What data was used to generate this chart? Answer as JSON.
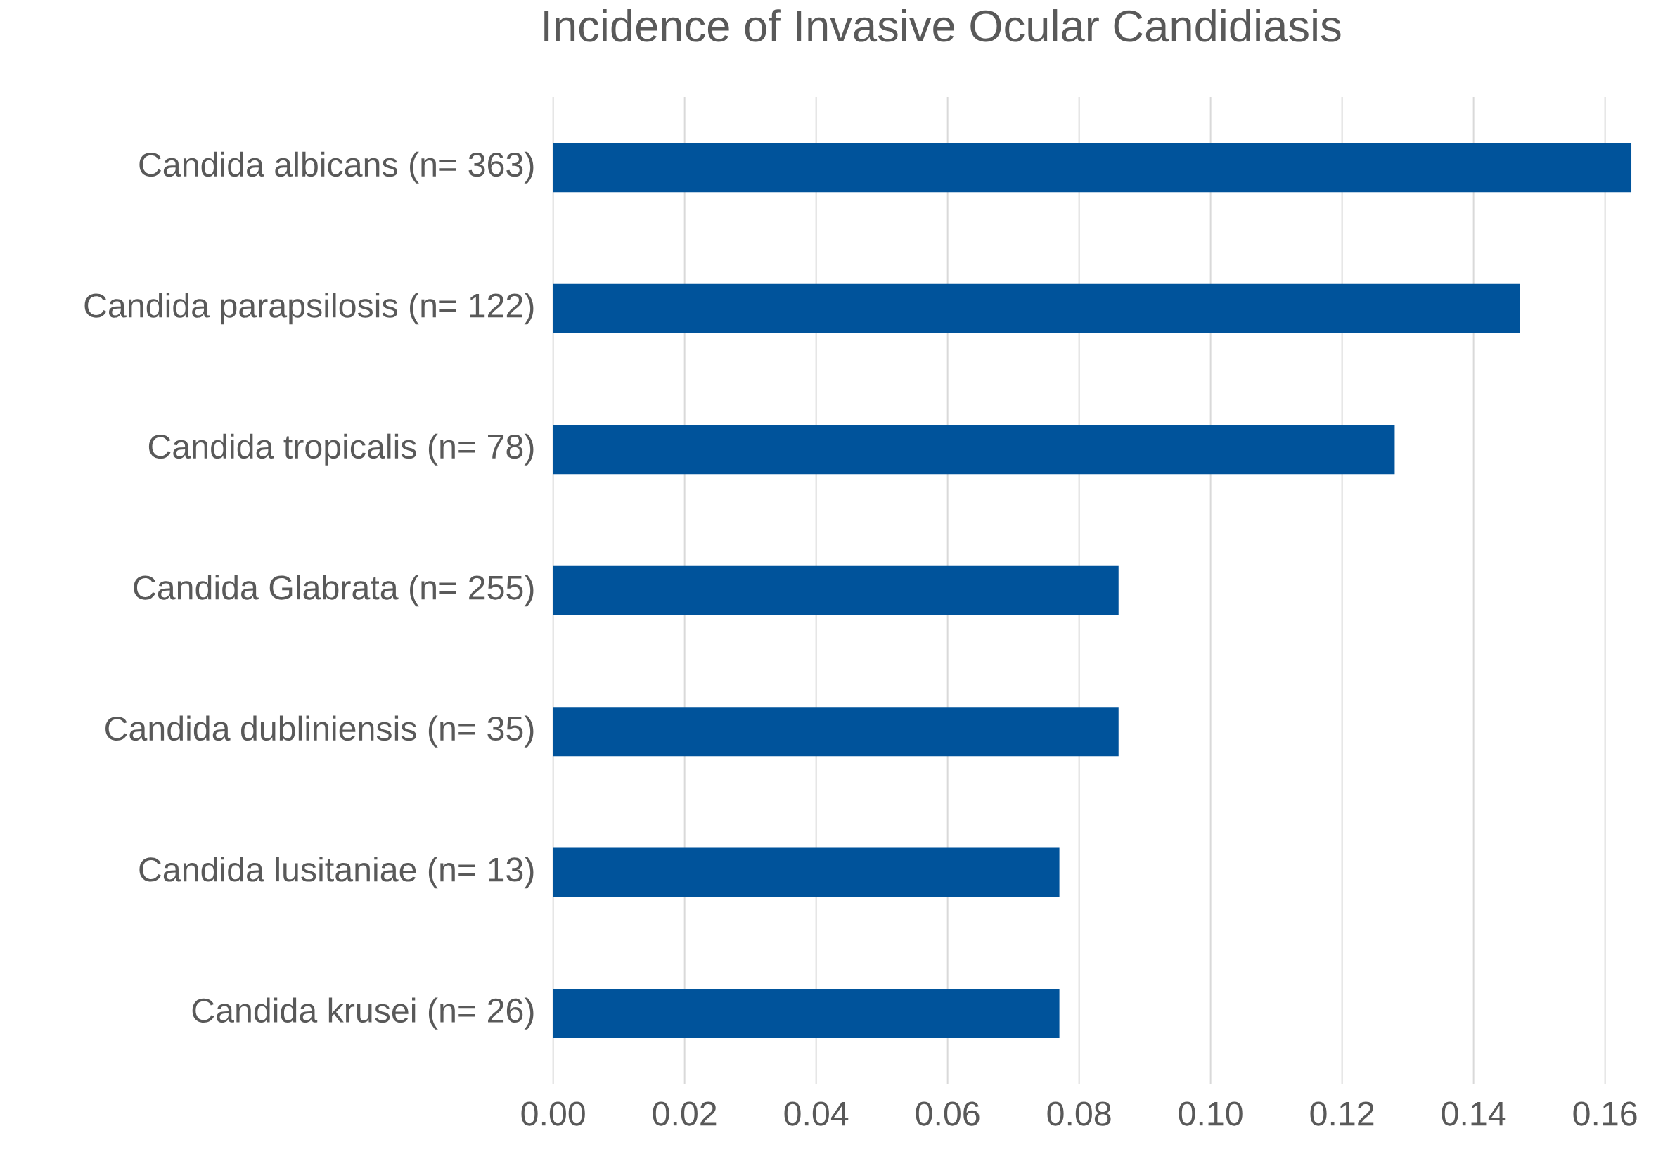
{
  "chart_data": {
    "type": "bar",
    "orientation": "horizontal",
    "title": "Incidence of Invasive Ocular Candidiasis",
    "categories": [
      "Candida albicans (n= 363)",
      "Candida parapsilosis (n= 122)",
      "Candida tropicalis (n= 78)",
      "Candida Glabrata (n= 255)",
      "Candida dubliniensis (n= 35)",
      "Candida lusitaniae (n= 13)",
      "Candida krusei (n= 26)"
    ],
    "values": [
      0.164,
      0.147,
      0.128,
      0.086,
      0.086,
      0.077,
      0.077
    ],
    "color": "#00539b",
    "xlim": [
      0,
      0.164
    ],
    "xticks": [
      {
        "value": 0,
        "label": "0.00"
      },
      0.02,
      0.04,
      0.06,
      0.08,
      {
        "value": 0.1,
        "label": "0.10"
      },
      0.12,
      0.14,
      0.16
    ],
    "grid": "x"
  }
}
